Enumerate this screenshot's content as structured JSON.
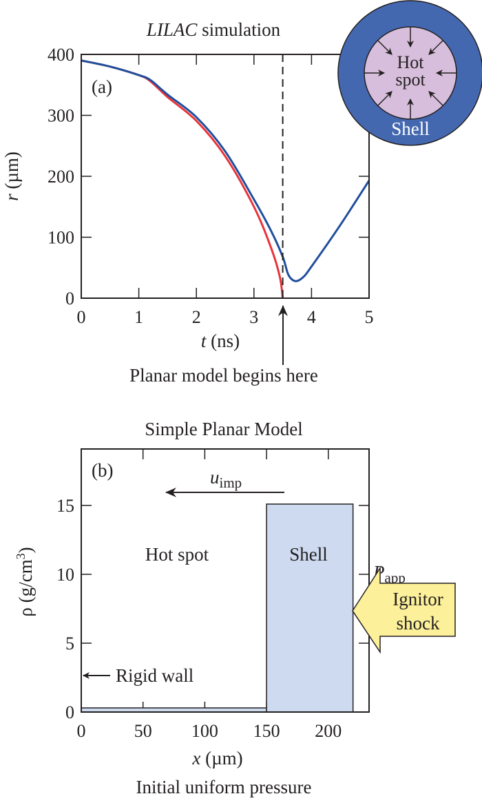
{
  "chart_data": [
    {
      "type": "line",
      "panel_label": "(a)",
      "title_italic": "LILAC",
      "title_rest": " simulation",
      "xlabel_var": "t",
      "xlabel_unit": " (ns)",
      "ylabel_var": "r",
      "ylabel_unit": " (µm)",
      "xlim": [
        0,
        5
      ],
      "ylim": [
        0,
        400
      ],
      "xticks": [
        "0",
        "1",
        "2",
        "3",
        "4",
        "5"
      ],
      "yticks": [
        "0",
        "100",
        "200",
        "300",
        "400"
      ],
      "grid": false,
      "series": [
        {
          "color": "#e8333a",
          "x": [
            0,
            0.5,
            1.0,
            1.2,
            1.5,
            2.0,
            2.5,
            3.0,
            3.3,
            3.45,
            3.5
          ],
          "y": [
            390,
            380,
            366,
            356,
            330,
            291,
            233,
            150,
            82,
            35,
            0
          ]
        },
        {
          "color": "#1f4e9c",
          "x": [
            0,
            0.5,
            1.0,
            1.2,
            1.5,
            2.0,
            2.5,
            3.0,
            3.3,
            3.5,
            3.6,
            3.72,
            3.85,
            4.0,
            4.5,
            5.0
          ],
          "y": [
            390,
            380,
            366,
            358,
            334,
            297,
            241,
            162,
            110,
            68,
            38,
            28,
            34,
            52,
            120,
            193
          ]
        }
      ],
      "vline_x": 3.5,
      "annotation": "Planar model begins here",
      "inset": {
        "inner_label_1": "Hot",
        "inner_label_2": "spot",
        "outer_label": "Shell",
        "outer_color": "#4468b0",
        "inner_color": "#d7bedc"
      }
    },
    {
      "type": "bar",
      "panel_label": "(b)",
      "title": "Simple Planar Model",
      "xlabel_var": "x",
      "xlabel_unit": " (µm)",
      "ylabel": "ρ (g/cm",
      "ylabel_sup": "3",
      "ylabel_end": ")",
      "xlim": [
        0,
        233
      ],
      "ylim": [
        0,
        19.1
      ],
      "xticks": [
        "0",
        "50",
        "100",
        "150",
        "200"
      ],
      "yticks": [
        "0",
        "5",
        "10",
        "15"
      ],
      "grid": false,
      "regions": [
        {
          "label": "Hot spot",
          "x0": 0,
          "x1": 150,
          "density": 0.3
        },
        {
          "label": "Shell",
          "x0": 150,
          "x1": 220,
          "density": 15.1
        }
      ],
      "fill_color": "#cddaf0",
      "velocity_label_var": "u",
      "velocity_label_sub": "imp",
      "wall_label": "Rigid wall",
      "pressure_label_var": "P",
      "pressure_label_sub": "app",
      "shock_label_1": "Ignitor",
      "shock_label_2": "shock",
      "shock_color": "#fcf09a",
      "caption": "Initial uniform pressure"
    }
  ]
}
